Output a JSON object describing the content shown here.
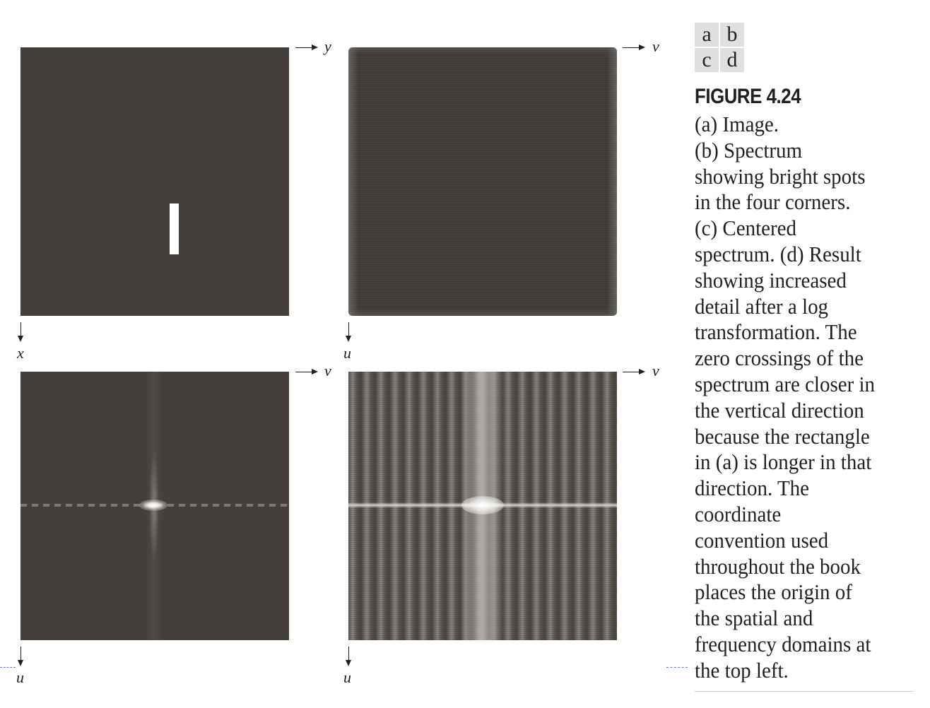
{
  "panel_key": {
    "a": "a",
    "b": "b",
    "c": "c",
    "d": "d"
  },
  "axes": {
    "a_horizontal": "y",
    "a_vertical": "x",
    "b_horizontal": "v",
    "b_vertical": "u",
    "c_horizontal": "v",
    "c_vertical": "u",
    "d_horizontal": "v",
    "d_vertical": "u"
  },
  "figure": {
    "title": "FIGURE 4.24",
    "caption_lines": [
      "(a) Image.",
      "(b) Spectrum",
      "showing bright spots",
      "in the four corners.",
      "(c) Centered",
      "spectrum. (d) Result",
      "showing increased",
      "detail after a log",
      "transformation. The",
      "zero crossings of the",
      "spectrum are closer in",
      "the vertical direction",
      "because the rectangle",
      "in (a) is longer in that",
      "direction. The",
      "coordinate",
      "convention used",
      "throughout the book",
      "places the origin of",
      "the spatial and",
      "frequency domains at",
      "the top left."
    ]
  },
  "colors": {
    "panel_background": "#443f3b",
    "text": "#231f20",
    "key_background": "#e0e0e0"
  }
}
